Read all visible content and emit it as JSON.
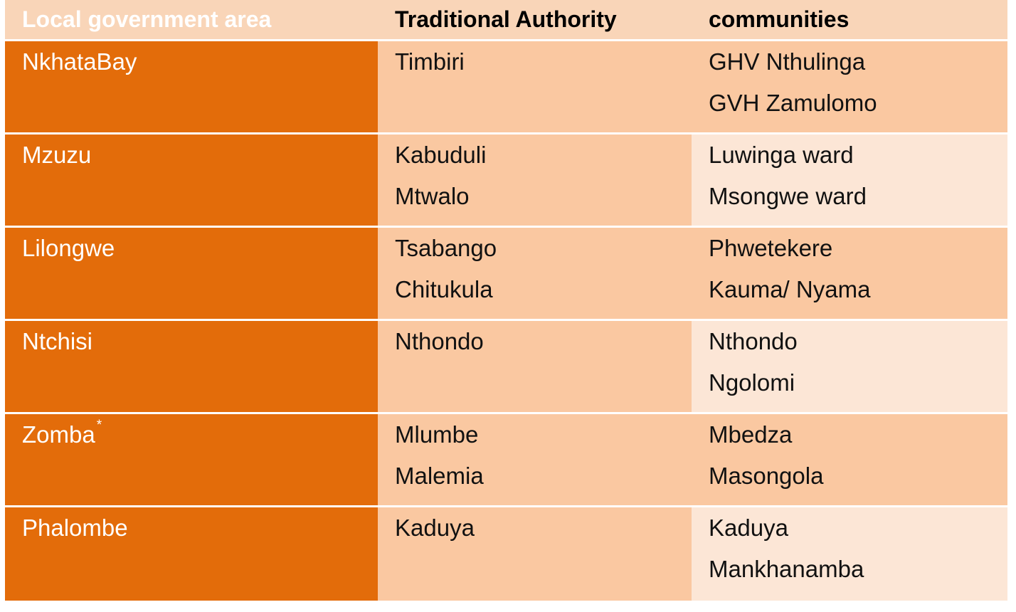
{
  "colors": {
    "header_bg": "#F9D5B8",
    "lga_column_bg": "#E36C0A",
    "ta_column_bg": "#FAC8A1",
    "community_band_dark": "#FAC8A1",
    "community_band_light": "#FCE6D6",
    "divider": "#FFFFFF"
  },
  "table": {
    "headers": {
      "lga": "Local government area",
      "ta": "Traditional Authority",
      "communities": "communities"
    },
    "rows": [
      {
        "lga": "NkhataBay",
        "lga_note": "",
        "ta": [
          "Timbiri",
          ""
        ],
        "communities": [
          "GHV Nthulinga",
          "GVH Zamulomo"
        ]
      },
      {
        "lga": "Mzuzu",
        "lga_note": "",
        "ta": [
          "Kabuduli",
          "Mtwalo"
        ],
        "communities": [
          "Luwinga ward",
          "Msongwe ward"
        ]
      },
      {
        "lga": "Lilongwe",
        "lga_note": "",
        "ta": [
          "Tsabango",
          "Chitukula"
        ],
        "communities": [
          "Phwetekere",
          "Kauma/ Nyama"
        ]
      },
      {
        "lga": "Ntchisi",
        "lga_note": "",
        "ta": [
          "Nthondo",
          ""
        ],
        "communities": [
          "Nthondo",
          "Ngolomi"
        ]
      },
      {
        "lga": "Zomba",
        "lga_note": "*",
        "ta": [
          "Mlumbe",
          "Malemia"
        ],
        "communities": [
          "Mbedza",
          "Masongola"
        ]
      },
      {
        "lga": "Phalombe",
        "lga_note": "",
        "ta": [
          "Kaduya",
          ""
        ],
        "communities": [
          "Kaduya",
          "Mankhanamba"
        ]
      }
    ]
  }
}
